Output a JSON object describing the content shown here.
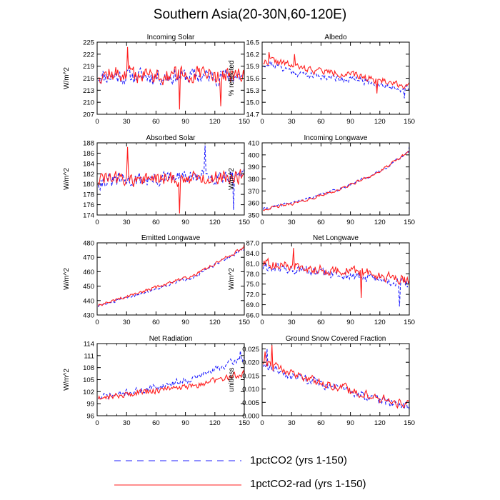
{
  "title": "Southern Asia(20-30N,60-120E)",
  "colors": {
    "series_a": "#1f1fff",
    "series_b": "#ff1f1f",
    "axis": "#000000"
  },
  "legend": [
    {
      "label": "1pctCO2 (yrs 1-150)",
      "style": "dashed",
      "color": "#1f1fff"
    },
    {
      "label": "1pctCO2-rad (yrs 1-150)",
      "style": "solid",
      "color": "#ff1f1f"
    }
  ],
  "chart_data": [
    {
      "type": "line",
      "title": "Incoming Solar",
      "ylabel": "W/m^2",
      "xlim": [
        0,
        150
      ],
      "ylim": [
        207,
        225
      ],
      "xticks": [
        "0",
        "30",
        "60",
        "90",
        "120",
        "150"
      ],
      "yticks": [
        "207",
        "210",
        "213",
        "216",
        "219",
        "222",
        "225"
      ],
      "series": [
        {
          "style": "dashed",
          "trend": [
            [
              1,
              216.5
            ],
            [
              150,
              216.5
            ]
          ],
          "noise": 2.8,
          "seed": 11
        },
        {
          "style": "solid",
          "trend": [
            [
              1,
              217
            ],
            [
              150,
              216.5
            ]
          ],
          "noise": 3.0,
          "seed": 12,
          "spikes": [
            [
              31,
              223.8
            ],
            [
              84,
              208.2
            ],
            [
              126,
              209
            ]
          ]
        }
      ]
    },
    {
      "type": "line",
      "title": "Albedo",
      "ylabel": "% reflected",
      "xlim": [
        0,
        150
      ],
      "ylim": [
        14.7,
        16.5
      ],
      "xticks": [
        "0",
        "30",
        "60",
        "90",
        "120",
        "150"
      ],
      "yticks": [
        "14.7",
        "15.0",
        "15.3",
        "15.6",
        "15.9",
        "16.2",
        "16.5"
      ],
      "series": [
        {
          "style": "dashed",
          "trend": [
            [
              1,
              15.95
            ],
            [
              10,
              15.95
            ],
            [
              40,
              15.7
            ],
            [
              100,
              15.55
            ],
            [
              150,
              15.3
            ]
          ],
          "noise": 0.12,
          "seed": 21,
          "spikes": [
            [
              145,
              15.1
            ]
          ]
        },
        {
          "style": "solid",
          "trend": [
            [
              1,
              16.0
            ],
            [
              10,
              16.05
            ],
            [
              40,
              15.85
            ],
            [
              100,
              15.65
            ],
            [
              150,
              15.4
            ]
          ],
          "noise": 0.12,
          "seed": 22,
          "spikes": [
            [
              7,
              16.25
            ],
            [
              33,
              16.2
            ],
            [
              117,
              15.22
            ]
          ]
        }
      ]
    },
    {
      "type": "line",
      "title": "Absorbed Solar",
      "ylabel": "W/m^2",
      "xlim": [
        0,
        150
      ],
      "ylim": [
        174,
        188
      ],
      "xticks": [
        "0",
        "30",
        "60",
        "90",
        "120",
        "150"
      ],
      "yticks": [
        "174",
        "176",
        "178",
        "180",
        "182",
        "184",
        "186",
        "188"
      ],
      "series": [
        {
          "style": "dashed",
          "trend": [
            [
              1,
              180.5
            ],
            [
              75,
              181
            ],
            [
              150,
              182
            ]
          ],
          "noise": 2.0,
          "seed": 31,
          "spikes": [
            [
              110,
              187.5
            ],
            [
              139,
              175
            ]
          ]
        },
        {
          "style": "solid",
          "trend": [
            [
              1,
              181
            ],
            [
              75,
              181
            ],
            [
              150,
              181.5
            ]
          ],
          "noise": 2.1,
          "seed": 32,
          "spikes": [
            [
              31,
              187.2
            ],
            [
              84,
              174.3
            ]
          ]
        }
      ]
    },
    {
      "type": "line",
      "title": "Incoming Longwave",
      "ylabel": "W/m^2",
      "xlim": [
        0,
        150
      ],
      "ylim": [
        350,
        410
      ],
      "xticks": [
        "0",
        "30",
        "60",
        "90",
        "120",
        "150"
      ],
      "yticks": [
        "350",
        "360",
        "370",
        "380",
        "390",
        "400",
        "410"
      ],
      "series": [
        {
          "style": "dashed",
          "trend": [
            [
              1,
              355
            ],
            [
              40,
              362
            ],
            [
              80,
              372
            ],
            [
              120,
              386
            ],
            [
              150,
              403
            ]
          ],
          "noise": 1.6,
          "seed": 41,
          "spikes": [
            [
              150,
              407
            ]
          ]
        },
        {
          "style": "solid",
          "trend": [
            [
              1,
              354.5
            ],
            [
              40,
              361
            ],
            [
              80,
              371.5
            ],
            [
              120,
              386
            ],
            [
              150,
              403
            ]
          ],
          "noise": 1.6,
          "seed": 42
        }
      ]
    },
    {
      "type": "line",
      "title": "Emitted Longwave",
      "ylabel": "W/m^2",
      "xlim": [
        0,
        150
      ],
      "ylim": [
        430,
        480
      ],
      "xticks": [
        "0",
        "30",
        "60",
        "90",
        "120",
        "150"
      ],
      "yticks": [
        "430",
        "440",
        "450",
        "460",
        "470",
        "480"
      ],
      "series": [
        {
          "style": "dashed",
          "trend": [
            [
              1,
              436
            ],
            [
              50,
              446
            ],
            [
              100,
              457
            ],
            [
              150,
              476
            ]
          ],
          "noise": 1.5,
          "seed": 51
        },
        {
          "style": "solid",
          "trend": [
            [
              1,
              436.5
            ],
            [
              50,
              447
            ],
            [
              100,
              458
            ],
            [
              150,
              477
            ]
          ],
          "noise": 1.5,
          "seed": 52,
          "spikes": [
            [
              150,
              479
            ]
          ]
        }
      ]
    },
    {
      "type": "line",
      "title": "Net Longwave",
      "ylabel": "W/m^2",
      "xlim": [
        0,
        150
      ],
      "ylim": [
        66.0,
        87.0
      ],
      "xticks": [
        "0",
        "30",
        "60",
        "90",
        "120",
        "150"
      ],
      "yticks": [
        "66.0",
        "69.0",
        "72.0",
        "75.0",
        "78.0",
        "81.0",
        "84.0",
        "87.0"
      ],
      "series": [
        {
          "style": "dashed",
          "trend": [
            [
              1,
              80
            ],
            [
              50,
              78.5
            ],
            [
              100,
              77
            ],
            [
              150,
              75
            ]
          ],
          "noise": 2.0,
          "seed": 61,
          "spikes": [
            [
              140,
              68.5
            ]
          ]
        },
        {
          "style": "solid",
          "trend": [
            [
              1,
              81
            ],
            [
              50,
              79.5
            ],
            [
              100,
              78.5
            ],
            [
              150,
              76
            ]
          ],
          "noise": 2.0,
          "seed": 62,
          "spikes": [
            [
              32,
              85.5
            ],
            [
              101,
              71
            ]
          ]
        }
      ]
    },
    {
      "type": "line",
      "title": "Net Radiation",
      "ylabel": "W/m^2",
      "xlim": [
        0,
        150
      ],
      "ylim": [
        96,
        114
      ],
      "xticks": [
        "0",
        "30",
        "60",
        "90",
        "120",
        "150"
      ],
      "yticks": [
        "96",
        "99",
        "102",
        "105",
        "108",
        "111",
        "114"
      ],
      "series": [
        {
          "style": "dashed",
          "trend": [
            [
              1,
              100.5
            ],
            [
              50,
              102.5
            ],
            [
              100,
              105.5
            ],
            [
              150,
              110.5
            ]
          ],
          "noise": 1.2,
          "seed": 71,
          "spikes": [
            [
              146,
              112.2
            ]
          ]
        },
        {
          "style": "solid",
          "trend": [
            [
              1,
              100.5
            ],
            [
              50,
              102
            ],
            [
              100,
              103.5
            ],
            [
              150,
              106.5
            ]
          ],
          "noise": 1.1,
          "seed": 72
        }
      ]
    },
    {
      "type": "line",
      "title": "Ground Snow Covered Fraction",
      "ylabel": "unitless",
      "xlim": [
        0,
        150
      ],
      "ylim": [
        0.0,
        0.027
      ],
      "xticks": [
        "0",
        "30",
        "60",
        "90",
        "120",
        "150"
      ],
      "yticks": [
        "0.000",
        "0.005",
        "0.010",
        "0.015",
        "0.020",
        "0.025"
      ],
      "series": [
        {
          "style": "dashed",
          "trend": [
            [
              1,
              0.019
            ],
            [
              30,
              0.015
            ],
            [
              80,
              0.01
            ],
            [
              120,
              0.006
            ],
            [
              150,
              0.0035
            ]
          ],
          "noise": 0.0022,
          "seed": 81,
          "spikes": [
            [
              5,
              0.025
            ]
          ]
        },
        {
          "style": "solid",
          "trend": [
            [
              1,
              0.02
            ],
            [
              30,
              0.016
            ],
            [
              80,
              0.0105
            ],
            [
              120,
              0.0065
            ],
            [
              150,
              0.004
            ]
          ],
          "noise": 0.0024,
          "seed": 82,
          "spikes": [
            [
              10,
              0.0265
            ],
            [
              3,
              0.024
            ]
          ]
        }
      ]
    }
  ]
}
